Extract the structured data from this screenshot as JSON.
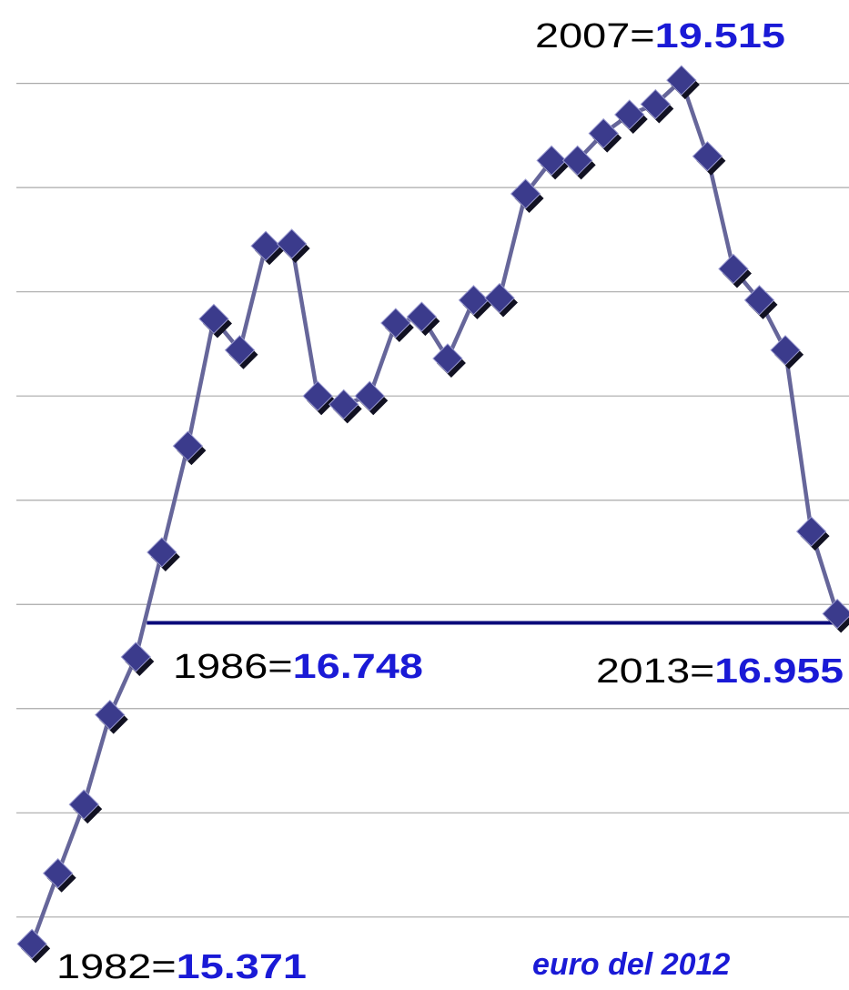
{
  "chart_data": {
    "type": "line",
    "x": [
      1982,
      1983,
      1984,
      1985,
      1986,
      1987,
      1988,
      1989,
      1990,
      1991,
      1992,
      1993,
      1994,
      1995,
      1996,
      1997,
      1998,
      1999,
      2000,
      2001,
      2002,
      2003,
      2004,
      2005,
      2006,
      2007,
      2008,
      2009,
      2010,
      2011,
      2012,
      2013
    ],
    "series": [
      {
        "name": "",
        "color": "#3b3b8c",
        "values": [
          15.371,
          15.71,
          16.04,
          16.47,
          16.748,
          17.25,
          17.76,
          18.37,
          18.22,
          18.72,
          18.73,
          18.0,
          17.96,
          18.0,
          18.35,
          18.38,
          18.18,
          18.46,
          18.47,
          18.97,
          19.13,
          19.13,
          19.26,
          19.35,
          19.4,
          19.515,
          19.15,
          18.61,
          18.46,
          18.22,
          17.35,
          16.955
        ]
      }
    ],
    "xlim": [
      1980.77,
      2013.45
    ],
    "ylim": [
      15.15,
      19.9
    ],
    "yticks": [
      15.5,
      16,
      16.5,
      17,
      17.5,
      18,
      18.5,
      19,
      19.5
    ],
    "grid": true,
    "annotations": [
      {
        "prefix": "2007=",
        "number": "19.515"
      },
      {
        "prefix": "1986=",
        "number": "16.748"
      },
      {
        "prefix": "2013=",
        "number": "16.955"
      },
      {
        "prefix": "1982=",
        "number": "15.371"
      }
    ],
    "footnote": "euro del 2012"
  }
}
